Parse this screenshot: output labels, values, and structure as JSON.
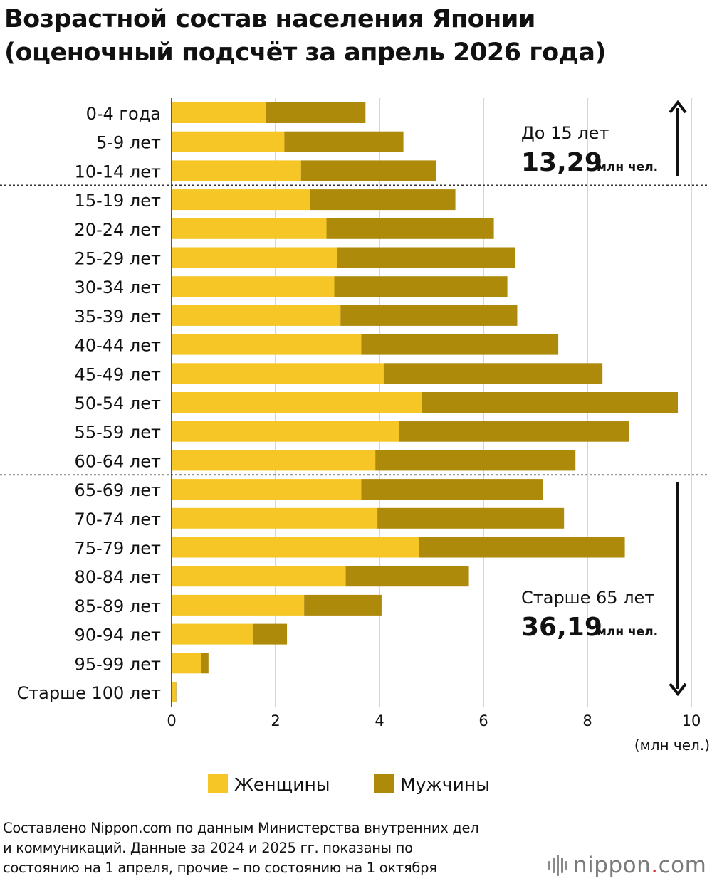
{
  "title_line1": "Возрастной состав населения Японии",
  "title_line2": "(оценочный подсчёт за апрель 2026 года)",
  "colors": {
    "women": "#F5C625",
    "men": "#AE8A0A",
    "grid": "#c8c8c8",
    "text": "#111111"
  },
  "chart_data": {
    "type": "bar",
    "orientation": "horizontal",
    "stacked": true,
    "categories": [
      "0-4 года",
      "5-9 лет",
      "10-14 лет",
      "15-19 лет",
      "20-24 лет",
      "25-29 лет",
      "30-34 лет",
      "35-39 лет",
      "40-44 лет",
      "45-49 лет",
      "50-54 лет",
      "55-59 лет",
      "60-64 лет",
      "65-69 лет",
      "70-74 лет",
      "75-79 лет",
      "80-84 лет",
      "85-89 лет",
      "90-94 лет",
      "95-99 лет",
      "Старше 100 лет"
    ],
    "series": [
      {
        "name": "Женщины",
        "values": [
          1.81,
          2.17,
          2.49,
          2.66,
          2.98,
          3.19,
          3.13,
          3.25,
          3.65,
          4.08,
          4.81,
          4.38,
          3.92,
          3.65,
          3.96,
          4.76,
          3.35,
          2.55,
          1.56,
          0.57,
          0.08
        ]
      },
      {
        "name": "Мужчины",
        "values": [
          1.92,
          2.29,
          2.6,
          2.8,
          3.22,
          3.42,
          3.33,
          3.4,
          3.79,
          4.21,
          4.93,
          4.42,
          3.85,
          3.5,
          3.59,
          3.96,
          2.37,
          1.49,
          0.66,
          0.14,
          0.01
        ]
      }
    ],
    "xlim": [
      0,
      10
    ],
    "xticks": [
      "0",
      "2",
      "4",
      "6",
      "8",
      "10"
    ],
    "xunit": "(млн чел.)",
    "grid": true,
    "legend_position": "bottom",
    "legend": [
      "Женщины",
      "Мужчины"
    ],
    "group_dividers_after": [
      "10-14 лет",
      "60-64 лет"
    ],
    "annotations": [
      {
        "label": "До 15 лет",
        "value": "13,29",
        "unit": "млн чел.",
        "arrow": "up"
      },
      {
        "label": "Старше 65 лет",
        "value": "36,19",
        "unit": "млн чел.",
        "arrow": "down"
      }
    ]
  },
  "footer_line1": "Составлено Nippon.com по данным Министерства внутренних дел",
  "footer_line2": "и коммуникаций. Данные за 2024 и 2025 гг. показаны по",
  "footer_line3": "состоянию на 1 апреля, прочие – по состоянию на 1 октября",
  "logo": {
    "text_main": "nippon",
    "text_dot": ".",
    "text_suffix": "com"
  }
}
